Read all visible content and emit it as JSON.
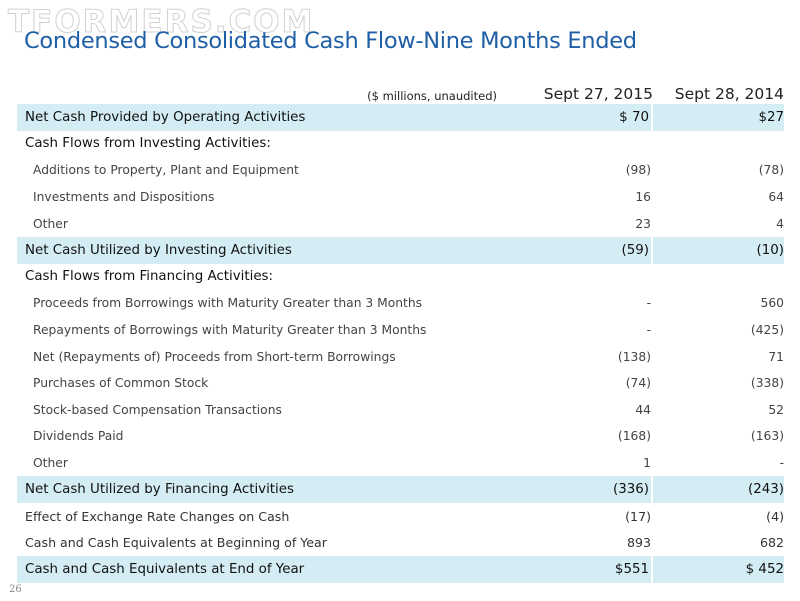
{
  "watermark": "TFORMERS.COM",
  "title": "Condensed Consolidated Cash Flow-Nine Months Ended",
  "header": {
    "units": "($ millions, unaudited)",
    "periods": [
      "Sept 27, 2015",
      "Sept 28, 2014"
    ]
  },
  "rows": [
    {
      "type": "total",
      "label": "Net Cash Provided by Operating Activities",
      "v1": "$ 70",
      "v2": "$27"
    },
    {
      "type": "section",
      "label": "Cash Flows from Investing Activities:",
      "v1": "",
      "v2": ""
    },
    {
      "type": "item",
      "label": "Additions to Property, Plant and Equipment",
      "v1": "(98)",
      "v2": "(78)"
    },
    {
      "type": "item",
      "label": "Investments and Dispositions",
      "v1": "16",
      "v2": "64"
    },
    {
      "type": "item",
      "label": "Other",
      "v1": "23",
      "v2": "4"
    },
    {
      "type": "total",
      "label": "Net Cash Utilized by Investing Activities",
      "v1": "(59)",
      "v2": "(10)"
    },
    {
      "type": "section",
      "label": "Cash Flows from Financing Activities:",
      "v1": "",
      "v2": ""
    },
    {
      "type": "item",
      "label": "Proceeds from Borrowings with Maturity Greater than 3 Months",
      "v1": "-",
      "v2": "560"
    },
    {
      "type": "item",
      "label": "Repayments of Borrowings with Maturity Greater than 3 Months",
      "v1": "-",
      "v2": "(425)"
    },
    {
      "type": "item",
      "label": "Net (Repayments of) Proceeds from Short-term Borrowings",
      "v1": "(138)",
      "v2": "71"
    },
    {
      "type": "item",
      "label": "Purchases of Common Stock",
      "v1": "(74)",
      "v2": "(338)"
    },
    {
      "type": "item",
      "label": "Stock-based Compensation Transactions",
      "v1": "44",
      "v2": "52"
    },
    {
      "type": "item",
      "label": "Dividends Paid",
      "v1": "(168)",
      "v2": "(163)"
    },
    {
      "type": "item",
      "label": "Other",
      "v1": "1",
      "v2": "-"
    },
    {
      "type": "total",
      "label": "Net Cash Utilized by Financing Activities",
      "v1": "(336)",
      "v2": "(243)"
    },
    {
      "type": "plain",
      "label": "Effect of Exchange Rate Changes on Cash",
      "v1": "(17)",
      "v2": "(4)"
    },
    {
      "type": "plain",
      "label": "Cash and Cash Equivalents at Beginning of Year",
      "v1": "893",
      "v2": "682"
    },
    {
      "type": "total",
      "label": "Cash and Cash Equivalents at End of Year",
      "v1": "$551",
      "v2": "$ 452"
    }
  ],
  "page_number": "26",
  "colors": {
    "title": "#1f5fa6",
    "band": "#d4ecf4"
  }
}
